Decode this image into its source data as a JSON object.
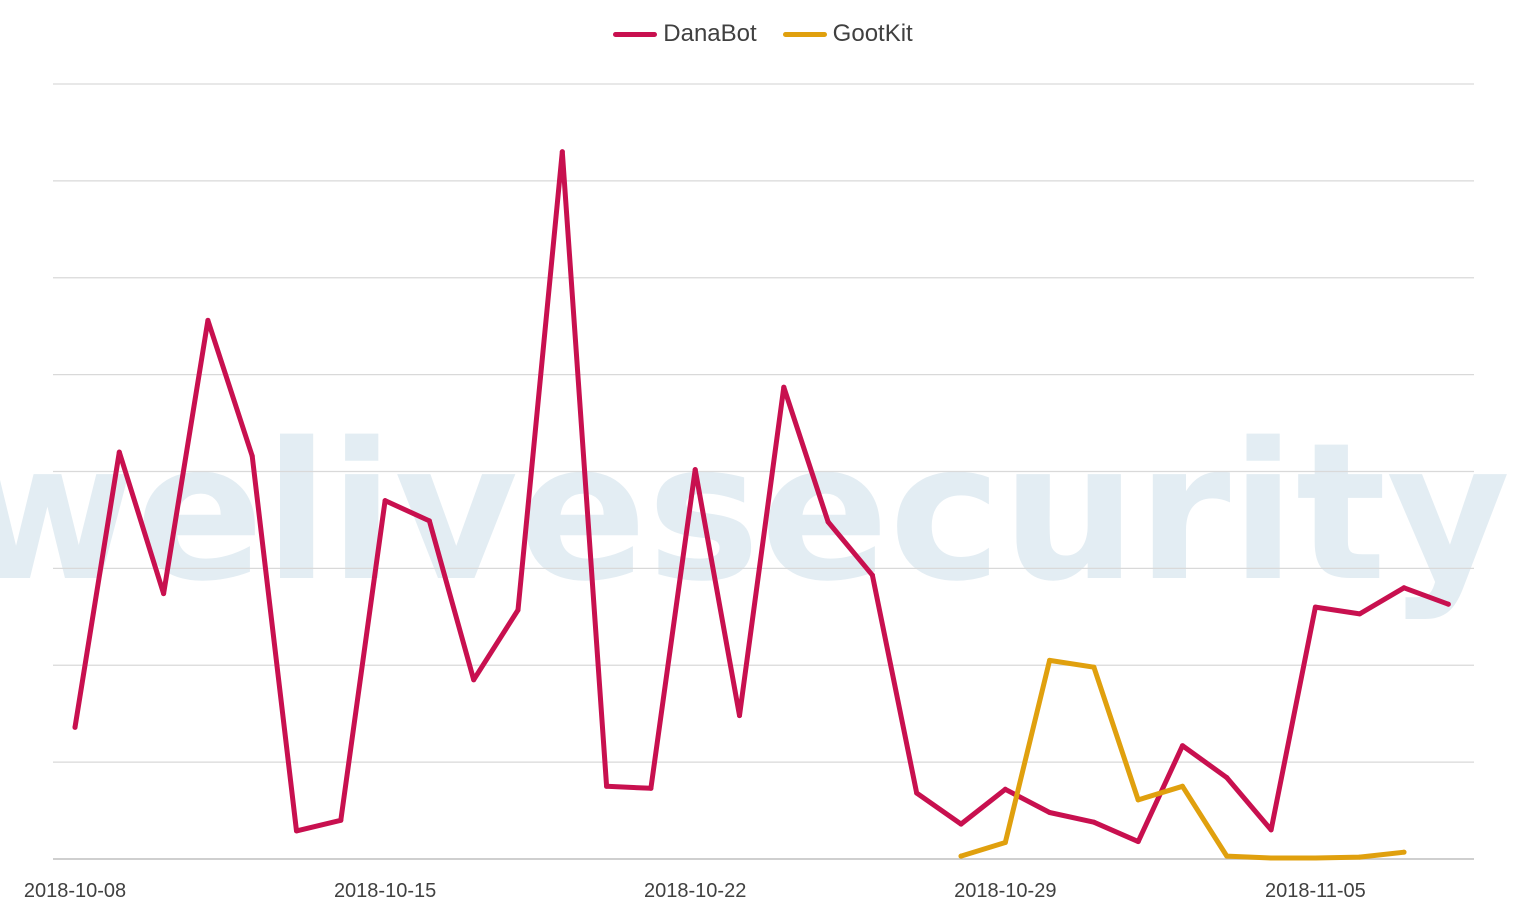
{
  "watermark": "welivesecurity",
  "chart_data": {
    "type": "line",
    "title": "",
    "xlabel": "",
    "ylabel": "",
    "ylim": [
      0,
      8
    ],
    "grid": true,
    "legend_position": "top-center",
    "x_start": "2018-10-08",
    "x_end": "2018-11-09",
    "x_ticks": [
      "2018-10-08",
      "2018-10-15",
      "2018-10-22",
      "2018-10-29",
      "2018-11-05"
    ],
    "series": [
      {
        "name": "DanaBot",
        "color": "#c8104f",
        "points": [
          [
            "2018-10-08",
            1.36
          ],
          [
            "2018-10-09",
            4.2
          ],
          [
            "2018-10-10",
            2.74
          ],
          [
            "2018-10-11",
            5.56
          ],
          [
            "2018-10-12",
            4.16
          ],
          [
            "2018-10-13",
            0.29
          ],
          [
            "2018-10-14",
            0.4
          ],
          [
            "2018-10-15",
            3.7
          ],
          [
            "2018-10-16",
            3.49
          ],
          [
            "2018-10-17",
            1.85
          ],
          [
            "2018-10-18",
            2.57
          ],
          [
            "2018-10-19",
            7.3
          ],
          [
            "2018-10-20",
            0.75
          ],
          [
            "2018-10-21",
            0.73
          ],
          [
            "2018-10-22",
            4.02
          ],
          [
            "2018-10-23",
            1.48
          ],
          [
            "2018-10-24",
            4.87
          ],
          [
            "2018-10-25",
            3.48
          ],
          [
            "2018-10-26",
            2.93
          ],
          [
            "2018-10-27",
            0.68
          ],
          [
            "2018-10-28",
            0.36
          ],
          [
            "2018-10-29",
            0.72
          ],
          [
            "2018-10-30",
            0.48
          ],
          [
            "2018-10-31",
            0.38
          ],
          [
            "2018-11-01",
            0.18
          ],
          [
            "2018-11-02",
            1.17
          ],
          [
            "2018-11-03",
            0.84
          ],
          [
            "2018-11-04",
            0.3
          ],
          [
            "2018-11-05",
            2.6
          ],
          [
            "2018-11-06",
            2.53
          ],
          [
            "2018-11-07",
            2.8
          ],
          [
            "2018-11-08",
            2.63
          ]
        ]
      },
      {
        "name": "GootKit",
        "color": "#e0a00e",
        "points": [
          [
            "2018-10-28",
            0.03
          ],
          [
            "2018-10-29",
            0.17
          ],
          [
            "2018-10-30",
            2.05
          ],
          [
            "2018-10-31",
            1.98
          ],
          [
            "2018-11-01",
            0.61
          ],
          [
            "2018-11-02",
            0.75
          ],
          [
            "2018-11-03",
            0.03
          ],
          [
            "2018-11-04",
            0.01
          ],
          [
            "2018-11-05",
            0.01
          ],
          [
            "2018-11-06",
            0.02
          ],
          [
            "2018-11-07",
            0.07
          ]
        ]
      }
    ]
  }
}
